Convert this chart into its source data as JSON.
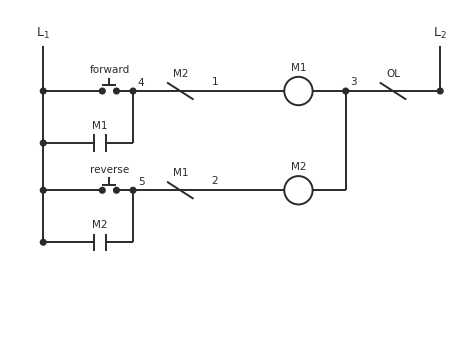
{
  "bg_color": "#ffffff",
  "line_color": "#2a2a2a",
  "text_color": "#2a2a2a",
  "lw": 1.4,
  "figsize": [
    4.74,
    3.38
  ],
  "dpi": 100,
  "xlim": [
    0,
    10
  ],
  "ylim": [
    0,
    7.1
  ]
}
